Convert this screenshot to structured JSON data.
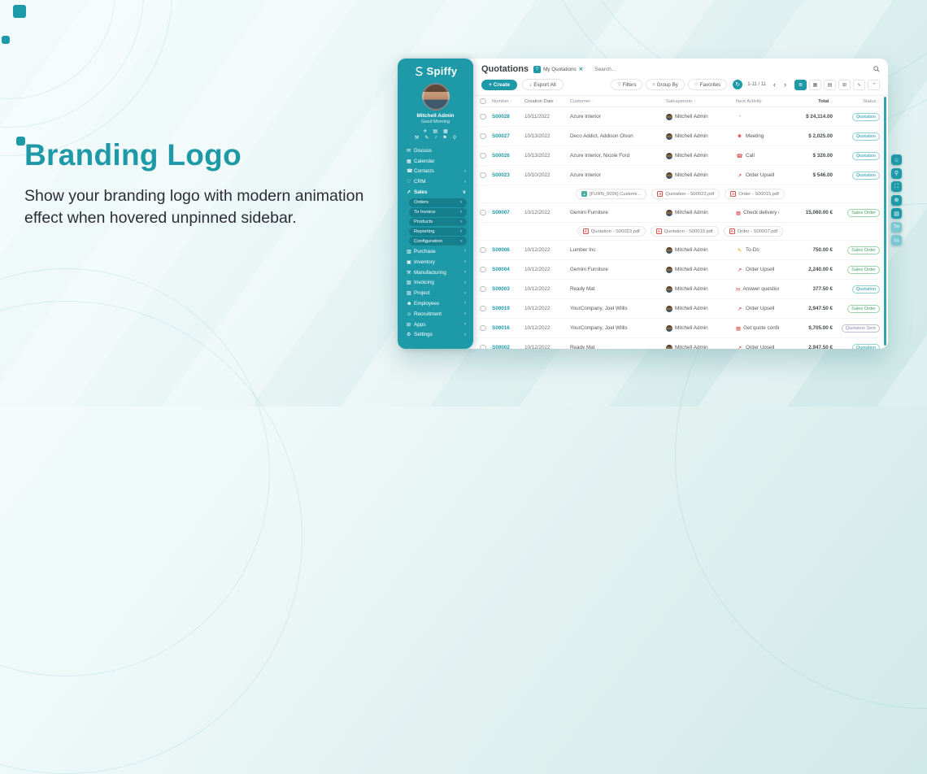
{
  "colors": {
    "brand_teal": "#1E99A8",
    "badge_quotation": "#1E99A8",
    "badge_sales_order": "#43a45f",
    "badge_quotation_sent": "#8a86b5"
  },
  "hero": {
    "title": "Branding Logo",
    "description": "Show your branding logo with modern animation effect when hovered unpinned sidebar."
  },
  "sidebar": {
    "brand": "Spiffy",
    "user": {
      "name": "Mitchell Admin",
      "greeting": "Good Morning"
    },
    "quick_icons_row1": [
      {
        "name": "plane-icon",
        "glyph": "✈"
      },
      {
        "name": "briefcase-icon",
        "glyph": "▤"
      },
      {
        "name": "apps-grid-icon",
        "glyph": "▦"
      }
    ],
    "quick_icons_row2": [
      {
        "name": "vehicle-icon",
        "glyph": "⚒"
      },
      {
        "name": "tools-icon",
        "glyph": "✎"
      },
      {
        "name": "signal-icon",
        "glyph": "♪"
      },
      {
        "name": "lock-icon",
        "glyph": "⚑"
      },
      {
        "name": "location-icon",
        "glyph": "⚲"
      }
    ],
    "menu": [
      {
        "label": "Discuss",
        "icon": "discuss-icon",
        "glyph": "✉",
        "arrow": ""
      },
      {
        "label": "Calendar",
        "icon": "calendar-icon",
        "glyph": "▦",
        "arrow": ""
      },
      {
        "label": "Contacts",
        "icon": "contacts-icon",
        "glyph": "☎",
        "arrow": "›"
      },
      {
        "label": "CRM",
        "icon": "crm-icon",
        "glyph": "♡",
        "arrow": "›"
      },
      {
        "label": "Sales",
        "icon": "sales-icon",
        "glyph": "↗",
        "arrow": "∨",
        "active": true
      },
      {
        "label": "Orders",
        "sub": true,
        "arrow": "›"
      },
      {
        "label": "To Invoice",
        "sub": true,
        "arrow": "›"
      },
      {
        "label": "Products",
        "sub": true,
        "arrow": "›"
      },
      {
        "label": "Reporting",
        "sub": true,
        "arrow": "›"
      },
      {
        "label": "Configuration",
        "sub": true,
        "arrow": "›"
      },
      {
        "label": "Purchase",
        "icon": "purchase-icon",
        "glyph": "▥",
        "arrow": "›"
      },
      {
        "label": "Inventory",
        "icon": "inventory-icon",
        "glyph": "▣",
        "arrow": "›"
      },
      {
        "label": "Manufacturing",
        "icon": "manufacturing-icon",
        "glyph": "⚒",
        "arrow": "›"
      },
      {
        "label": "Invoicing",
        "icon": "invoicing-icon",
        "glyph": "▧",
        "arrow": "›"
      },
      {
        "label": "Project",
        "icon": "project-icon",
        "glyph": "▨",
        "arrow": "›"
      },
      {
        "label": "Employees",
        "icon": "employees-icon",
        "glyph": "☻",
        "arrow": "›"
      },
      {
        "label": "Recruitment",
        "icon": "recruitment-icon",
        "glyph": "☺",
        "arrow": "›"
      },
      {
        "label": "Apps",
        "icon": "apps-icon",
        "glyph": "⊞",
        "arrow": "›"
      },
      {
        "label": "Settings",
        "icon": "settings-icon",
        "glyph": "⚙",
        "arrow": "›"
      }
    ]
  },
  "main": {
    "header": {
      "title": "Quotations",
      "filter_chip": "My Quotations",
      "filter_chip_close": "✕",
      "search_placeholder": "Search...",
      "create_label": "Create",
      "create_plus": "+",
      "export_label": "Export All",
      "export_glyph": "↓",
      "filters_label": "Filters",
      "filters_glyph": "▽",
      "group_by_label": "Group By",
      "group_by_glyph": "≡",
      "favorites_label": "Favorites",
      "favorites_glyph": "☆",
      "refresh_glyph": "↻",
      "pagination": "1-11 / 11",
      "prev_glyph": "‹",
      "next_glyph": "›"
    },
    "view_switcher": [
      {
        "name": "list-view-button",
        "glyph": "≣",
        "active": true
      },
      {
        "name": "kanban-view-button",
        "glyph": "▦"
      },
      {
        "name": "calendar-view-button",
        "glyph": "▤"
      },
      {
        "name": "pivot-view-button",
        "glyph": "⊞"
      },
      {
        "name": "graph-view-button",
        "glyph": "∿"
      },
      {
        "name": "activity-view-button",
        "glyph": "◔"
      }
    ],
    "activity_icons": {
      "clock": {
        "glyph": "◔",
        "color": "#9aa0a6",
        "icon_name": "clock-icon"
      },
      "meeting": {
        "glyph": "☻",
        "color": "#d9534f",
        "icon_name": "meeting-icon"
      },
      "call": {
        "glyph": "☎",
        "color": "#d9534f",
        "icon_name": "phone-icon"
      },
      "upsell": {
        "glyph": "↗",
        "color": "#c0392b",
        "icon_name": "chart-upsell-icon"
      },
      "deadline": {
        "glyph": "▦",
        "color": "#d9534f",
        "icon_name": "calendar-alert-icon"
      },
      "todo": {
        "glyph": "✎",
        "color": "#e0a800",
        "icon_name": "todo-note-icon"
      },
      "mail": {
        "glyph": "✉",
        "color": "#d9534f",
        "icon_name": "envelope-icon"
      }
    },
    "table": {
      "columns": [
        {
          "label": "Number",
          "sort": true
        },
        {
          "label": "Creation Date",
          "sort": true
        },
        {
          "label": "Customer",
          "sort": true
        },
        {
          "label": "Salesperson",
          "sort": true
        },
        {
          "label": "Next Activity",
          "sort": false
        },
        {
          "label": "Total",
          "sort": true
        },
        {
          "label": "Status",
          "sort": true
        }
      ],
      "rows": [
        {
          "number": "S00028",
          "date": "10/11/2022",
          "customer": "Azure Interior",
          "salesperson": "Mitchell Admin",
          "activity": {
            "kind": "clock",
            "label": ""
          },
          "total": "$ 24,114.00",
          "status": "Quotation"
        },
        {
          "number": "S00027",
          "date": "10/13/2022",
          "customer": "Deco Addict, Addison Olson",
          "salesperson": "Mitchell Admin",
          "activity": {
            "kind": "meeting",
            "label": "Meeting"
          },
          "total": "$ 2,025.00",
          "status": "Quotation"
        },
        {
          "number": "S00026",
          "date": "10/13/2022",
          "customer": "Azure Interior, Nicole Ford",
          "salesperson": "Mitchell Admin",
          "activity": {
            "kind": "call",
            "label": "Call"
          },
          "total": "$ 320.00",
          "status": "Quotation"
        },
        {
          "number": "S00023",
          "date": "10/10/2022",
          "customer": "Azure Interior",
          "salesperson": "Mitchell Admin",
          "activity": {
            "kind": "upsell",
            "label": "Order Upsell"
          },
          "total": "$ 546.00",
          "status": "Quotation",
          "attachments": [
            {
              "type": "image",
              "label": "[FURN_0096] Customi..."
            },
            {
              "type": "pdf",
              "label": "Quotation - S00023.pdf"
            },
            {
              "type": "pdf",
              "label": "Order - S00015.pdf"
            }
          ]
        },
        {
          "number": "S00007",
          "date": "10/12/2022",
          "customer": "Gemini Furniture",
          "salesperson": "Mitchell Admin",
          "activity": {
            "kind": "deadline",
            "label": "Check delivery requirements"
          },
          "total": "15,060.00 €",
          "status": "Sales Order",
          "attachments": [
            {
              "type": "pdf",
              "label": "Quotation - S00023.pdf"
            },
            {
              "type": "pdf",
              "label": "Quotation - S00010.pdf"
            },
            {
              "type": "pdf",
              "label": "Order - S00007.pdf"
            }
          ]
        },
        {
          "number": "S00006",
          "date": "10/12/2022",
          "customer": "Lumber Inc",
          "salesperson": "Mitchell Admin",
          "activity": {
            "kind": "todo",
            "label": "To-Do"
          },
          "total": "750.00 €",
          "status": "Sales Order"
        },
        {
          "number": "S00004",
          "date": "10/12/2022",
          "customer": "Gemini Furniture",
          "salesperson": "Mitchell Admin",
          "activity": {
            "kind": "upsell",
            "label": "Order Upsell"
          },
          "total": "2,240.00 €",
          "status": "Sales Order"
        },
        {
          "number": "S00003",
          "date": "10/12/2022",
          "customer": "Ready Mat",
          "salesperson": "Mitchell Admin",
          "activity": {
            "kind": "mail",
            "label": "Answer questions"
          },
          "total": "377.50 €",
          "status": "Quotation"
        },
        {
          "number": "S00019",
          "date": "10/12/2022",
          "customer": "YourCompany, Joel Willis",
          "salesperson": "Mitchell Admin",
          "activity": {
            "kind": "upsell",
            "label": "Order Upsell"
          },
          "total": "2,947.50 €",
          "status": "Sales Order"
        },
        {
          "number": "S00016",
          "date": "10/12/2022",
          "customer": "YourCompany, Joel Willis",
          "salesperson": "Mitchell Admin",
          "activity": {
            "kind": "deadline",
            "label": "Get quote confirmation"
          },
          "total": "9,705.00 €",
          "status": "Quotation Sent"
        },
        {
          "number": "S00002",
          "date": "10/12/2022",
          "customer": "Ready Mat",
          "salesperson": "Mitchell Admin",
          "activity": {
            "kind": "upsell",
            "label": "Order Upsell"
          },
          "total": "2,947.50 €",
          "status": "Quotation"
        }
      ]
    }
  },
  "right_toolbar": {
    "buttons": [
      {
        "name": "favorites-panel-button",
        "glyph": "☆"
      },
      {
        "name": "search-panel-button",
        "glyph": "⚲"
      },
      {
        "name": "fullscreen-button",
        "glyph": "⛶"
      },
      {
        "name": "zoom-button",
        "glyph": "⊕"
      },
      {
        "name": "chatter-button",
        "glyph": "▤"
      },
      {
        "name": "shortcut-button-1",
        "glyph": "Tm",
        "light": true
      },
      {
        "name": "shortcut-button-2",
        "glyph": "Lu",
        "light": true
      }
    ]
  }
}
